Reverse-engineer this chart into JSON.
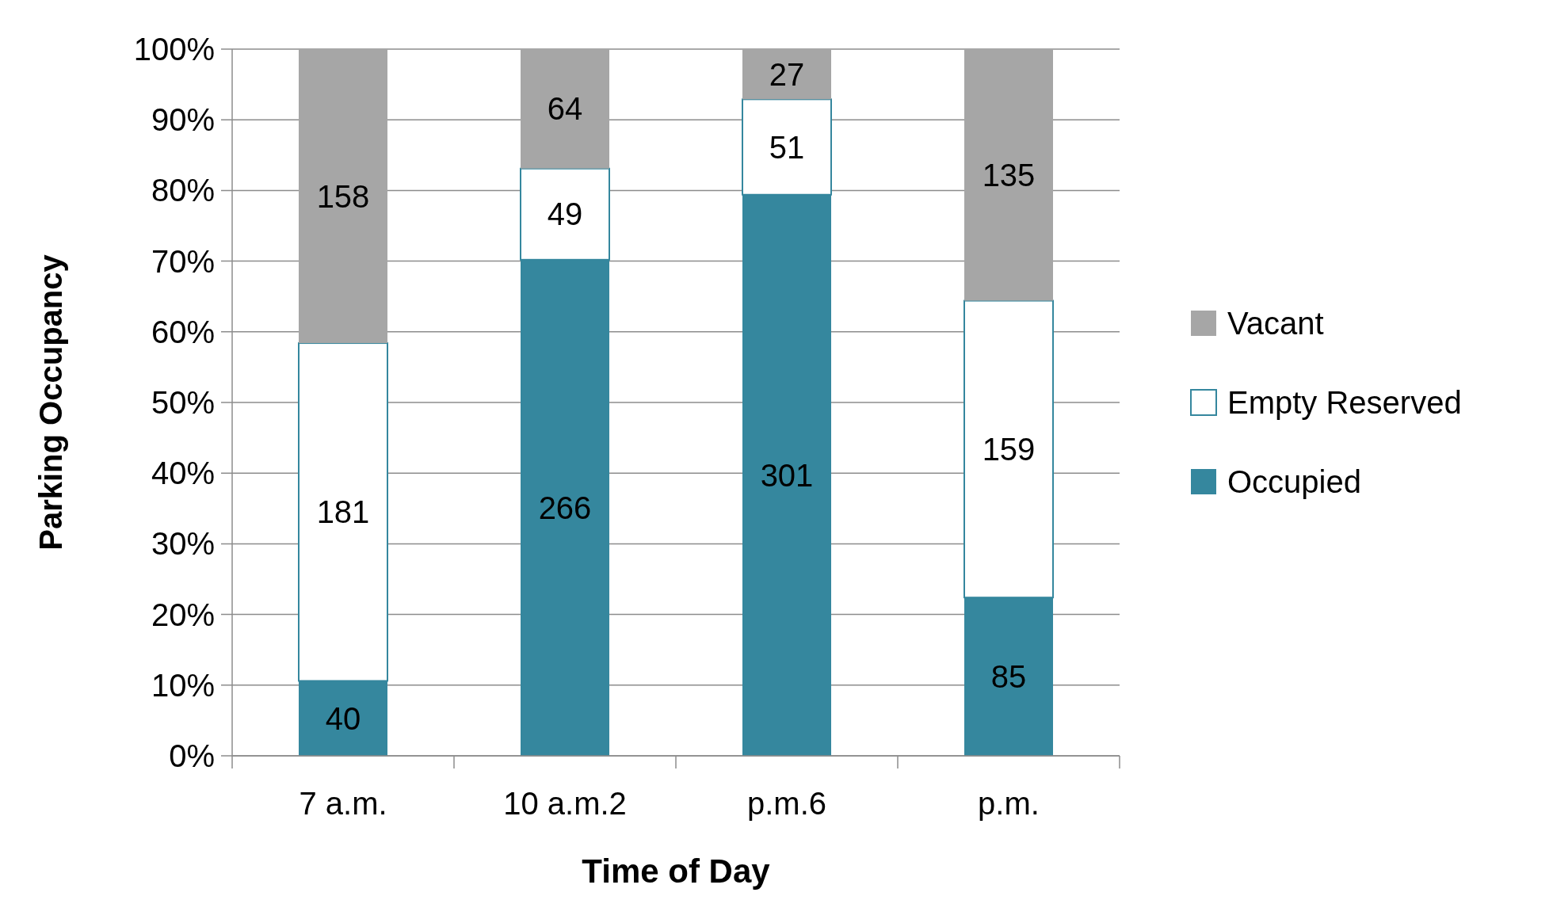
{
  "chart_data": {
    "type": "bar",
    "stacked": true,
    "xlabel": "Time of Day",
    "ylabel": "Parking Occupancy",
    "categories": [
      "7 a.m.",
      "10 a.m.2",
      "p.m.6",
      "p.m."
    ],
    "series": [
      {
        "name": "Occupied",
        "color": "#35879e",
        "values": [
          10.6,
          70.2,
          79.4,
          22.4
        ]
      },
      {
        "name": "Empty Reserved",
        "color": "#ffffff",
        "values": [
          47.8,
          12.9,
          13.5,
          42.0
        ]
      },
      {
        "name": "Vacant",
        "color": "#a6a6a6",
        "values": [
          41.6,
          16.9,
          7.1,
          35.6
        ]
      }
    ],
    "annotations": [
      "40",
      "181",
      "158",
      "266",
      "49",
      "64",
      "301",
      "51",
      "27",
      "85",
      "159",
      "135"
    ],
    "ylim": [
      0,
      100
    ],
    "yticks": [
      {
        "value": 0,
        "label": "0%"
      },
      {
        "value": 10,
        "label": "10%"
      },
      {
        "value": 20,
        "label": "20%"
      },
      {
        "value": 30,
        "label": "30%"
      },
      {
        "value": 40,
        "label": "40%"
      },
      {
        "value": 50,
        "label": "50%"
      },
      {
        "value": 60,
        "label": "60%"
      },
      {
        "value": 70,
        "label": "70%"
      },
      {
        "value": 80,
        "label": "80%"
      },
      {
        "value": 90,
        "label": "90%"
      },
      {
        "value": 100,
        "label": "100%"
      }
    ],
    "grid": "y",
    "legend": "right"
  }
}
